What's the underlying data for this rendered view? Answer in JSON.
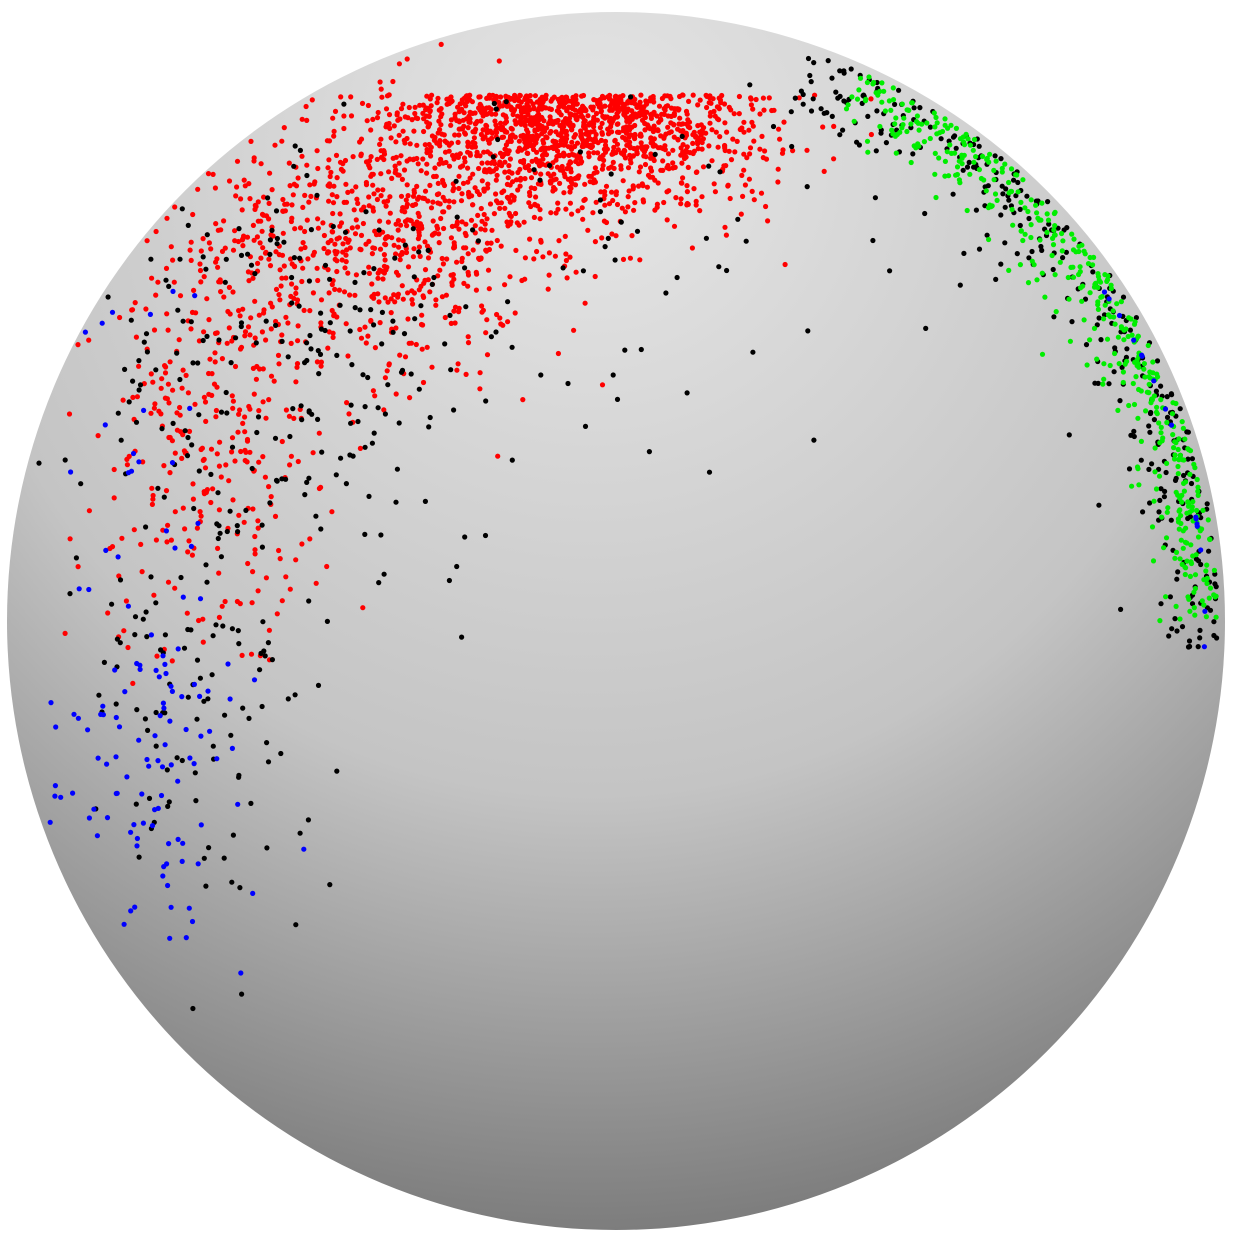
{
  "figure": {
    "kind": "points-on-sphere",
    "background_color": "#ffffff",
    "sphere_shading": {
      "light_color": "#e6e6e6",
      "mid_color": "#c4c4c4",
      "dark_color": "#6f6f6f"
    }
  },
  "point_clusters": [
    {
      "color": "#ff0000",
      "description_key": "red",
      "approx_count": 2400
    },
    {
      "color": "#000000",
      "description_key": "black",
      "approx_count": 700
    },
    {
      "color": "#00ee00",
      "description_key": "green",
      "approx_count": 450
    },
    {
      "color": "#0000ff",
      "description_key": "blue",
      "approx_count": 140
    }
  ]
}
